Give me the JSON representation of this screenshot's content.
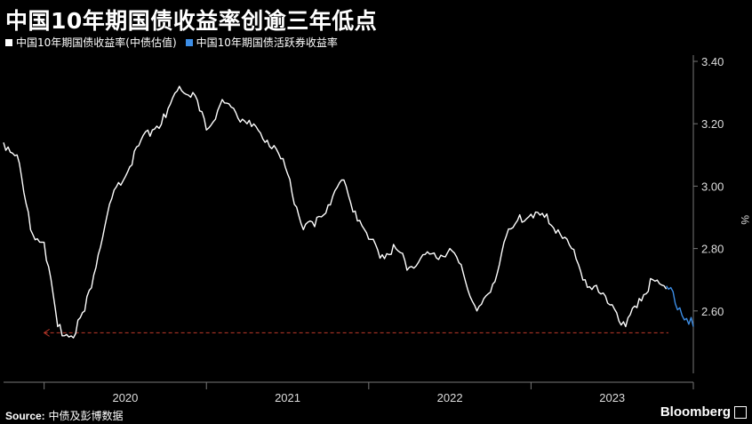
{
  "title": "中国10年期国债收益率创逾三年低点",
  "legend": [
    {
      "label": "中国10年期国债收益率(中债估值)",
      "color": "#ffffff"
    },
    {
      "label": "中国10年期国债活跃券收益率",
      "color": "#3d8ee6"
    }
  ],
  "source_label": "Source:",
  "source_text": "中债及彭博数据",
  "brand": "Bloomberg",
  "chart_data": {
    "type": "line",
    "title": "中国10年期国债收益率创逾三年低点",
    "xlabel": "",
    "ylabel": "%",
    "ylim": [
      2.4,
      3.42
    ],
    "x_ticks": [
      "2020",
      "2021",
      "2022",
      "2023"
    ],
    "y_ticks": [
      "3.40",
      "3.20",
      "3.00",
      "2.80",
      "2.60"
    ],
    "reference_line": 2.53,
    "series": [
      {
        "name": "中国10年期国债收益率(中债估值)",
        "color": "#ffffff",
        "x": [
          "2019-10",
          "2019-11",
          "2019-12",
          "2020-01",
          "2020-02",
          "2020-03",
          "2020-04",
          "2020-05",
          "2020-06",
          "2020-07",
          "2020-08",
          "2020-09",
          "2020-10",
          "2020-11",
          "2020-12",
          "2021-01",
          "2021-02",
          "2021-03",
          "2021-04",
          "2021-05",
          "2021-06",
          "2021-07",
          "2021-08",
          "2021-09",
          "2021-10",
          "2021-11",
          "2021-12",
          "2022-01",
          "2022-02",
          "2022-03",
          "2022-04",
          "2022-05",
          "2022-06",
          "2022-07",
          "2022-08",
          "2022-09",
          "2022-10",
          "2022-11",
          "2022-12",
          "2023-01",
          "2023-02",
          "2023-03",
          "2023-04",
          "2023-05",
          "2023-06",
          "2023-07",
          "2023-08",
          "2023-09",
          "2023-10",
          "2023-11"
        ],
        "values": [
          3.14,
          3.1,
          2.86,
          2.82,
          2.55,
          2.52,
          2.6,
          2.78,
          2.96,
          3.03,
          3.13,
          3.18,
          3.22,
          3.32,
          3.3,
          3.18,
          3.26,
          3.25,
          3.2,
          3.17,
          3.13,
          3.04,
          2.88,
          2.87,
          2.94,
          3.02,
          2.92,
          2.83,
          2.78,
          2.8,
          2.74,
          2.78,
          2.77,
          2.8,
          2.72,
          2.6,
          2.66,
          2.82,
          2.89,
          2.91,
          2.9,
          2.86,
          2.8,
          2.7,
          2.66,
          2.62,
          2.55,
          2.64,
          2.7,
          2.67
        ]
      },
      {
        "name": "中国10年期国债活跃券收益率",
        "color": "#3d8ee6",
        "x": [
          "2023-11",
          "2023-12",
          "2024-01"
        ],
        "values": [
          2.68,
          2.61,
          2.55
        ]
      }
    ]
  }
}
